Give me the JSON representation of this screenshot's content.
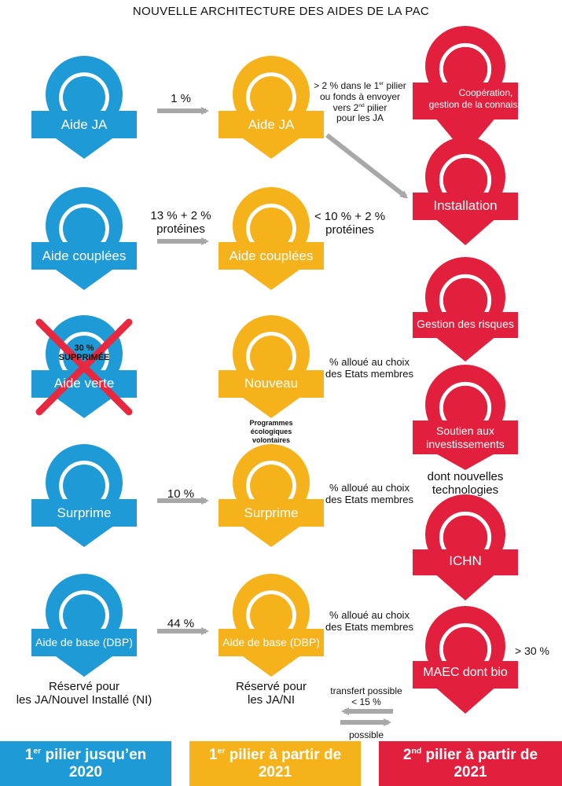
{
  "title": "NOUVELLE ARCHITECTURE DES AIDES DE LA PAC",
  "colors": {
    "blue": "#1e9ad6",
    "yellow": "#f6b21b",
    "red": "#e2203d",
    "arrow": "#a8a8a8",
    "cross": "#e8283e"
  },
  "col1": [
    {
      "label": "Aide JA"
    },
    {
      "label": "Aide couplées"
    },
    {
      "label": "Aide verte"
    },
    {
      "label": "Surprime"
    },
    {
      "label": "Aide de base (DBP)"
    }
  ],
  "col2": [
    {
      "label": "Aide JA"
    },
    {
      "label": "Aide couplées"
    },
    {
      "label": "Nouveau"
    },
    {
      "label": "Surprime"
    },
    {
      "label": "Aide de base (DBP)"
    }
  ],
  "col3": [
    {
      "line1": "Coopération,",
      "line2": "gestion de la connaissance"
    },
    {
      "line1": "Installation"
    },
    {
      "line1": "Gestion des risques"
    },
    {
      "line1": "Soutien aux",
      "line2": "investissements"
    },
    {
      "line1": "ICHN"
    },
    {
      "line1": "MAEC dont bio"
    }
  ],
  "arrows": [
    {
      "label1": "1 %"
    },
    {
      "label1": "13 % + 2 %",
      "label2": "protéines"
    },
    {
      "label1": "10 %"
    },
    {
      "label1": "44 %"
    }
  ],
  "aide_verte": {
    "pct": "30 %",
    "status": "SUPPRIMÉE"
  },
  "notes": {
    "ja_pre": "> 2 % dans le 1",
    "ja_sup": "er",
    "ja_post": " pilier",
    "ja_l2": "ou fonds à envoyer",
    "ja_l3_pre": "vers 2",
    "ja_l3_sup": "nd",
    "ja_l3_post": " pilier",
    "ja_l4": "pour les JA",
    "couplees_l1": "< 10 % + 2 %",
    "couplees_l2": "protéines",
    "choix_l1": "% alloué au choix",
    "choix_l2": "des Etats membres",
    "eco_l1": "Programmes",
    "eco_l2": "écologiques",
    "eco_l3": "volontaires",
    "techno_l1": "dont nouvelles",
    "techno_l2": "technologies",
    "maec_pct": "> 30 %",
    "reserve1_l1": "Réservé pour",
    "reserve1_l2": "les JA/Nouvel Installé (NI)",
    "reserve2_l1": "Réservé pour",
    "reserve2_l2": "les JA/NI",
    "transfert_l1": "transfert possible",
    "transfert_l2": "< 15 %",
    "transfert_l3": "possible"
  },
  "footer": [
    {
      "sup": "er",
      "pre": "1",
      "l1": " pilier jusqu’en",
      "l2": "2020"
    },
    {
      "sup": "er",
      "pre": "1",
      "l1": " pilier à partir de",
      "l2": "2021"
    },
    {
      "sup": "nd",
      "pre": "2",
      "l1": " pilier à partir de",
      "l2": "2021"
    }
  ]
}
